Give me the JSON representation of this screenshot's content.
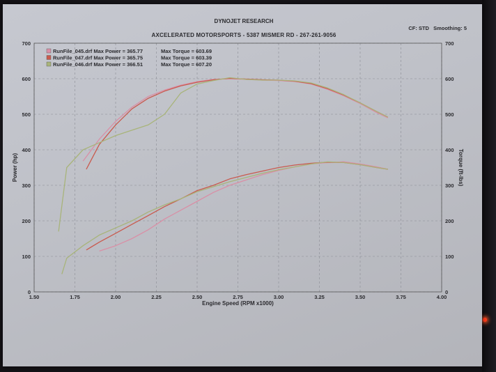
{
  "header": {
    "company": "DYNOJET RESEARCH",
    "shop": "AXCELERATED MOTORSPORTS - 5387 MISMER RD - 267-261-9056",
    "cf": "CF: STD",
    "smoothing": "Smoothing: 5"
  },
  "chart_data": {
    "type": "line",
    "xlabel": "Engine Speed (RPM x1000)",
    "ylabel": "Power (hp)",
    "y2label": "Torque (ft-lbs)",
    "xlim": [
      1.5,
      4.0
    ],
    "ylim": [
      0,
      700
    ],
    "y2lim": [
      0,
      700
    ],
    "x_ticks": [
      "1.50",
      "1.75",
      "2.00",
      "2.25",
      "2.50",
      "2.75",
      "3.00",
      "3.25",
      "3.50",
      "3.75",
      "4.00"
    ],
    "y_ticks": [
      "0",
      "100",
      "200",
      "300",
      "400",
      "500",
      "600",
      "700"
    ],
    "grid": true,
    "legend_position": "top-left",
    "legend": [
      {
        "name": "RunFile_045.drf",
        "max_power_label": "Max Power = 365.77",
        "max_torque_label": "Max Torque = 603.69",
        "color": "#d98fa6"
      },
      {
        "name": "RunFile_047.drf",
        "max_power_label": "Max Power = 365.75",
        "max_torque_label": "Max Torque = 603.39",
        "color": "#c95a4e"
      },
      {
        "name": "RunFile_046.drf",
        "max_power_label": "Max Power = 366.51",
        "max_torque_label": "Max Torque = 607.20",
        "color": "#a8b47a"
      }
    ],
    "series": [
      {
        "name": "RunFile_045.drf",
        "kind": "torque",
        "color": "#d98fa6",
        "points": [
          [
            1.8,
            368
          ],
          [
            1.9,
            430
          ],
          [
            2.0,
            480
          ],
          [
            2.1,
            520
          ],
          [
            2.2,
            550
          ],
          [
            2.3,
            568
          ],
          [
            2.4,
            582
          ],
          [
            2.5,
            592
          ],
          [
            2.6,
            598
          ],
          [
            2.7,
            600
          ],
          [
            2.8,
            598
          ],
          [
            2.9,
            596
          ],
          [
            3.0,
            595
          ],
          [
            3.1,
            592
          ],
          [
            3.2,
            585
          ],
          [
            3.3,
            570
          ],
          [
            3.4,
            552
          ],
          [
            3.5,
            530
          ],
          [
            3.6,
            505
          ],
          [
            3.67,
            490
          ]
        ]
      },
      {
        "name": "RunFile_047.drf",
        "kind": "torque",
        "color": "#c95a4e",
        "points": [
          [
            1.82,
            345
          ],
          [
            1.9,
            415
          ],
          [
            2.0,
            470
          ],
          [
            2.1,
            515
          ],
          [
            2.2,
            545
          ],
          [
            2.3,
            565
          ],
          [
            2.4,
            580
          ],
          [
            2.5,
            590
          ],
          [
            2.6,
            597
          ],
          [
            2.7,
            601
          ],
          [
            2.8,
            599
          ],
          [
            2.9,
            597
          ],
          [
            3.0,
            596
          ],
          [
            3.1,
            593
          ],
          [
            3.2,
            586
          ],
          [
            3.3,
            572
          ],
          [
            3.4,
            554
          ],
          [
            3.5,
            532
          ],
          [
            3.6,
            508
          ],
          [
            3.67,
            492
          ]
        ]
      },
      {
        "name": "RunFile_046.drf",
        "kind": "torque",
        "color": "#a8b47a",
        "points": [
          [
            1.65,
            170
          ],
          [
            1.7,
            350
          ],
          [
            1.8,
            400
          ],
          [
            1.9,
            420
          ],
          [
            2.0,
            440
          ],
          [
            2.1,
            455
          ],
          [
            2.2,
            470
          ],
          [
            2.3,
            500
          ],
          [
            2.4,
            560
          ],
          [
            2.5,
            585
          ],
          [
            2.6,
            595
          ],
          [
            2.7,
            603
          ],
          [
            2.8,
            598
          ],
          [
            2.9,
            596
          ],
          [
            3.0,
            596
          ],
          [
            3.1,
            594
          ],
          [
            3.2,
            588
          ],
          [
            3.3,
            574
          ],
          [
            3.4,
            555
          ],
          [
            3.5,
            532
          ],
          [
            3.6,
            508
          ],
          [
            3.67,
            492
          ]
        ]
      },
      {
        "name": "RunFile_045.drf",
        "kind": "power",
        "color": "#d98fa6",
        "points": [
          [
            1.9,
            115
          ],
          [
            2.0,
            130
          ],
          [
            2.1,
            150
          ],
          [
            2.2,
            175
          ],
          [
            2.3,
            205
          ],
          [
            2.4,
            230
          ],
          [
            2.5,
            255
          ],
          [
            2.6,
            280
          ],
          [
            2.7,
            300
          ],
          [
            2.8,
            315
          ],
          [
            2.9,
            330
          ],
          [
            3.0,
            342
          ],
          [
            3.1,
            352
          ],
          [
            3.2,
            360
          ],
          [
            3.3,
            364
          ],
          [
            3.4,
            366
          ],
          [
            3.5,
            360
          ],
          [
            3.6,
            352
          ],
          [
            3.67,
            345
          ]
        ]
      },
      {
        "name": "RunFile_047.drf",
        "kind": "power",
        "color": "#c95a4e",
        "points": [
          [
            1.82,
            118
          ],
          [
            1.9,
            140
          ],
          [
            2.0,
            165
          ],
          [
            2.1,
            190
          ],
          [
            2.2,
            215
          ],
          [
            2.3,
            240
          ],
          [
            2.4,
            262
          ],
          [
            2.5,
            285
          ],
          [
            2.6,
            300
          ],
          [
            2.7,
            318
          ],
          [
            2.8,
            330
          ],
          [
            2.9,
            340
          ],
          [
            3.0,
            350
          ],
          [
            3.1,
            357
          ],
          [
            3.2,
            362
          ],
          [
            3.3,
            365
          ],
          [
            3.4,
            364
          ],
          [
            3.5,
            358
          ],
          [
            3.6,
            350
          ],
          [
            3.67,
            345
          ]
        ]
      },
      {
        "name": "RunFile_046.drf",
        "kind": "power",
        "color": "#a8b47a",
        "points": [
          [
            1.67,
            50
          ],
          [
            1.7,
            95
          ],
          [
            1.8,
            130
          ],
          [
            1.9,
            160
          ],
          [
            2.0,
            180
          ],
          [
            2.1,
            200
          ],
          [
            2.2,
            225
          ],
          [
            2.3,
            245
          ],
          [
            2.4,
            262
          ],
          [
            2.5,
            282
          ],
          [
            2.6,
            296
          ],
          [
            2.7,
            310
          ],
          [
            2.8,
            322
          ],
          [
            2.9,
            334
          ],
          [
            3.0,
            344
          ],
          [
            3.1,
            352
          ],
          [
            3.2,
            360
          ],
          [
            3.3,
            366
          ],
          [
            3.4,
            364
          ],
          [
            3.5,
            358
          ],
          [
            3.6,
            350
          ],
          [
            3.67,
            345
          ]
        ]
      }
    ]
  }
}
